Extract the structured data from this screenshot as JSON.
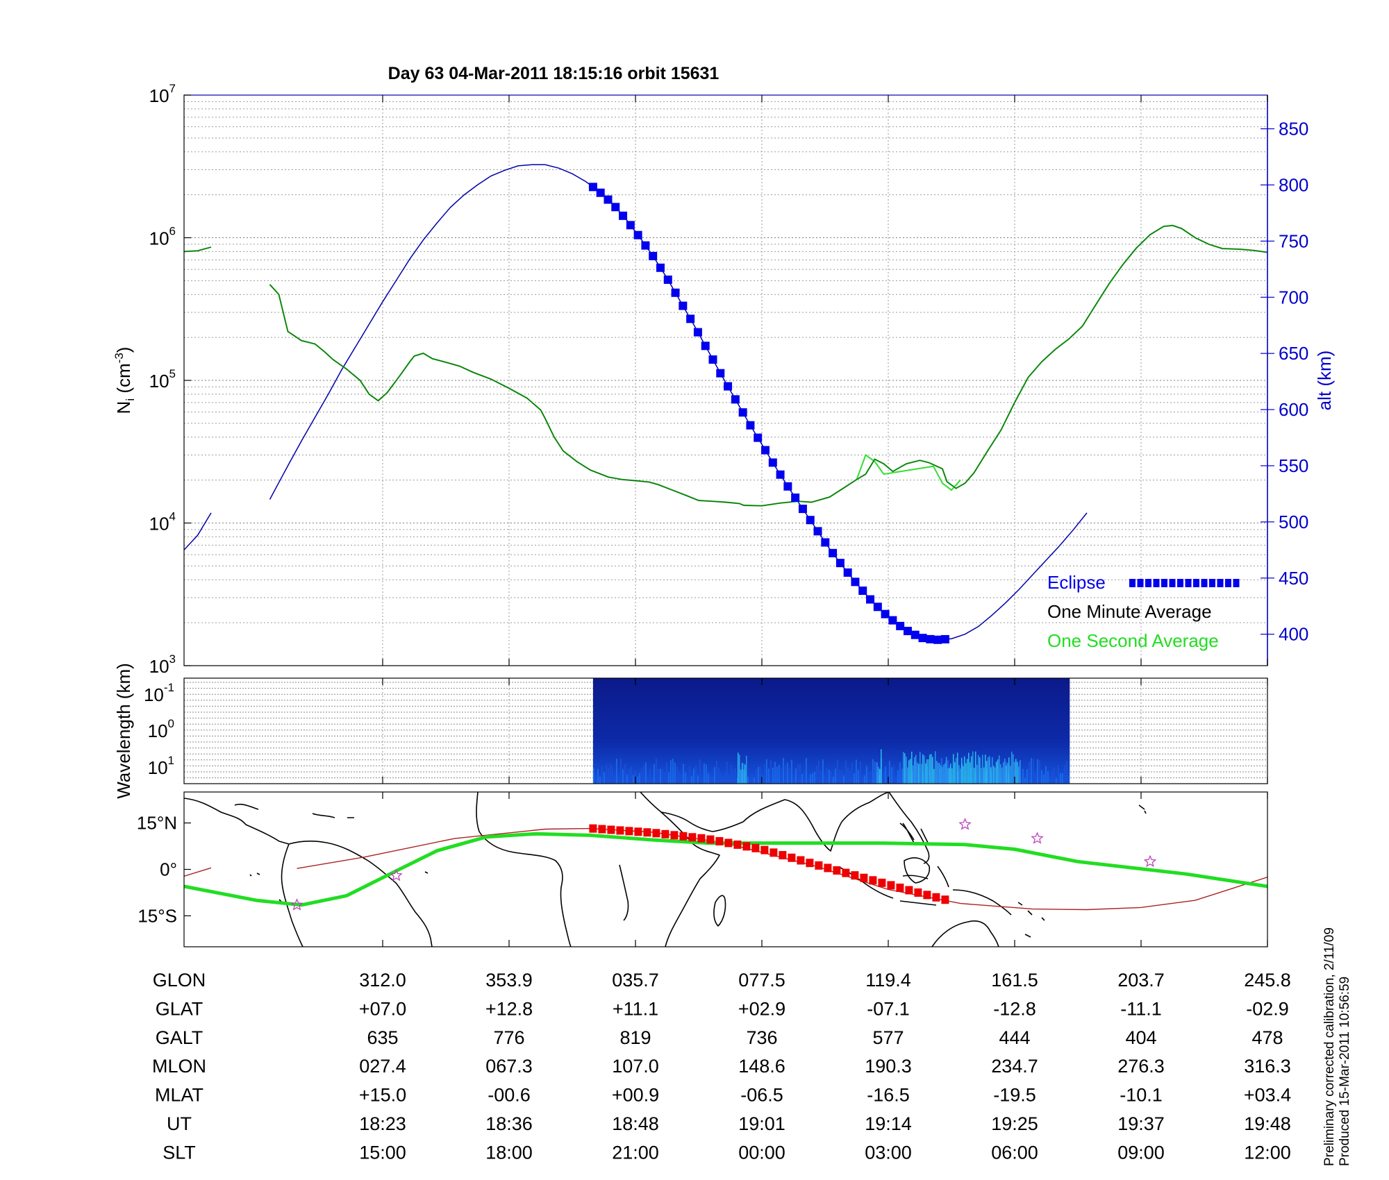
{
  "title": "Day 63  04-Mar-2011 18:15:16   orbit 15631",
  "footnote": {
    "line1": "Preliminary corrected calibration, 2/11/09",
    "line2": "Produced 15-Mar-2011 10:56:59"
  },
  "colors": {
    "density_minute": "#1a6b1a",
    "density_second": "#33dd33",
    "altitude": "#0000aa",
    "eclipse": "#0000ee",
    "map_track": "#22dd22",
    "map_orbit": "#aa2222",
    "map_eclipse": "#ee0000",
    "stars": "#bb44bb",
    "right_axis": "#0000cc",
    "legend_second": "#22dd22"
  },
  "chart_data": [
    {
      "type": "line",
      "name": "density_altitude",
      "ylabel_base": "N",
      "ylabel_sub": "i",
      "ylabel_unit": " (cm",
      "ylabel_sup": "-3",
      "ylabel_close": ")",
      "y_scale": "log",
      "ylim": [
        1000,
        10000000
      ],
      "y_ticks": [
        {
          "base": "10",
          "exp": "3"
        },
        {
          "base": "10",
          "exp": "4"
        },
        {
          "base": "10",
          "exp": "5"
        },
        {
          "base": "10",
          "exp": "6"
        },
        {
          "base": "10",
          "exp": "7"
        }
      ],
      "y2label": "alt (km)",
      "y2lim": [
        372,
        880
      ],
      "y2_ticks": [
        "400",
        "450",
        "500",
        "550",
        "600",
        "650",
        "700",
        "750",
        "800",
        "850"
      ],
      "x_unit": "minutes after 18:15:16",
      "xlim": [
        0,
        95
      ],
      "grid": true,
      "legend": {
        "placement": "bottom-right",
        "eclipse": "Eclipse",
        "minute": "One Minute Average",
        "second": "One Second Average"
      },
      "density_segments": [
        [
          [
            0,
            800000
          ],
          [
            1.5,
            810000
          ],
          [
            3,
            860000
          ]
        ],
        [
          [
            9.5,
            470000
          ],
          [
            10.5,
            400000
          ],
          [
            11.5,
            220000
          ],
          [
            13,
            190000
          ],
          [
            14.5,
            180000
          ],
          [
            15.5,
            160000
          ],
          [
            16.5,
            140000
          ],
          [
            18,
            120000
          ],
          [
            19.5,
            100000
          ],
          [
            20.5,
            80000
          ],
          [
            21.5,
            72000
          ],
          [
            22.5,
            82000
          ],
          [
            24,
            110000
          ],
          [
            25,
            135000
          ],
          [
            25.5,
            148000
          ],
          [
            26.5,
            155000
          ],
          [
            27.5,
            142000
          ],
          [
            29,
            134000
          ],
          [
            30.5,
            126000
          ],
          [
            32,
            114000
          ],
          [
            34,
            102000
          ],
          [
            36,
            88000
          ],
          [
            38,
            75000
          ],
          [
            39.5,
            62000
          ],
          [
            40,
            54000
          ],
          [
            41,
            40000
          ],
          [
            42,
            32000
          ],
          [
            43.5,
            27000
          ],
          [
            45,
            23500
          ],
          [
            47,
            21000
          ],
          [
            48.5,
            20200
          ],
          [
            50,
            19800
          ],
          [
            51.5,
            19400
          ],
          [
            52.5,
            18600
          ],
          [
            54,
            17100
          ],
          [
            55.5,
            15700
          ],
          [
            57,
            14400
          ],
          [
            58.5,
            14200
          ],
          [
            60,
            14000
          ],
          [
            61.5,
            13700
          ],
          [
            62,
            13300
          ],
          [
            64,
            13200
          ],
          [
            66,
            13800
          ],
          [
            68,
            14200
          ],
          [
            69.5,
            14000
          ],
          [
            71.5,
            15200
          ],
          [
            73,
            17500
          ],
          [
            74.5,
            20200
          ],
          [
            75.5,
            22000
          ],
          [
            76.5,
            28000
          ],
          [
            77.5,
            26000
          ],
          [
            78.5,
            23000
          ],
          [
            80,
            26000
          ],
          [
            81.5,
            27500
          ],
          [
            82.5,
            26500
          ],
          [
            84,
            24000
          ],
          [
            84.5,
            19500
          ],
          [
            85.5,
            17500
          ],
          [
            86.5,
            19000
          ],
          [
            87.5,
            22500
          ],
          [
            89,
            32000
          ],
          [
            90.5,
            45000
          ],
          [
            92,
            70000
          ],
          [
            93.5,
            105000
          ],
          [
            95,
            135000
          ],
          [
            96.5,
            165000
          ],
          [
            98,
            195000
          ],
          [
            99.5,
            240000
          ],
          [
            101,
            340000
          ],
          [
            102.5,
            480000
          ],
          [
            104,
            650000
          ],
          [
            105.5,
            850000
          ],
          [
            107,
            1050000
          ],
          [
            108.5,
            1200000
          ],
          [
            109.5,
            1220000
          ],
          [
            110.5,
            1160000
          ],
          [
            112,
            1000000
          ],
          [
            113.5,
            900000
          ],
          [
            115,
            840000
          ],
          [
            117,
            830000
          ],
          [
            118.5,
            815000
          ],
          [
            120,
            790000
          ]
        ]
      ],
      "density_second_spikes": [
        [
          74.5,
          20200
        ],
        [
          75.5,
          30000
        ],
        [
          76.5,
          27000
        ],
        [
          77.5,
          22000
        ],
        [
          83,
          25000
        ],
        [
          84,
          19000
        ],
        [
          85,
          17000
        ],
        [
          86,
          20000
        ]
      ],
      "altitude_km_segments": [
        [
          [
            0,
            475
          ],
          [
            1.5,
            488
          ],
          [
            3,
            508
          ]
        ],
        [
          [
            9.5,
            520
          ],
          [
            10.5,
            535
          ],
          [
            11.5,
            550
          ],
          [
            13,
            572
          ],
          [
            14.5,
            593
          ],
          [
            16,
            614
          ],
          [
            17.5,
            636
          ],
          [
            19,
            656
          ],
          [
            20.5,
            676
          ],
          [
            22,
            696
          ],
          [
            23.5,
            715
          ],
          [
            25,
            734
          ],
          [
            26.5,
            751
          ],
          [
            28,
            766
          ],
          [
            29.5,
            780
          ],
          [
            31,
            791
          ],
          [
            32.5,
            800
          ],
          [
            34,
            808
          ],
          [
            35.5,
            813
          ],
          [
            37,
            817
          ],
          [
            38.5,
            818
          ],
          [
            40,
            818
          ],
          [
            41.5,
            815
          ],
          [
            43,
            810
          ],
          [
            44.5,
            803
          ],
          [
            46,
            794
          ],
          [
            47.5,
            783
          ],
          [
            49,
            769
          ],
          [
            50.5,
            753
          ],
          [
            52,
            736
          ],
          [
            53.5,
            717
          ],
          [
            55,
            696
          ],
          [
            56.5,
            675
          ],
          [
            58,
            653
          ],
          [
            59.5,
            631
          ],
          [
            61,
            610
          ],
          [
            62.5,
            589
          ],
          [
            64,
            569
          ],
          [
            65.5,
            549
          ],
          [
            67,
            530
          ],
          [
            68.5,
            512
          ],
          [
            70,
            494
          ],
          [
            71.5,
            476
          ],
          [
            73,
            460
          ],
          [
            74.5,
            445
          ],
          [
            76,
            431
          ],
          [
            77.5,
            419
          ],
          [
            79,
            409
          ],
          [
            80.5,
            401
          ],
          [
            82,
            396
          ],
          [
            83.5,
            395
          ],
          [
            85,
            396
          ],
          [
            86.5,
            400
          ],
          [
            88,
            407
          ],
          [
            89.5,
            417
          ],
          [
            91,
            428
          ],
          [
            92.5,
            440
          ],
          [
            94,
            453
          ],
          [
            95.5,
            466
          ],
          [
            97,
            479
          ],
          [
            98.5,
            493
          ],
          [
            100,
            508
          ]
        ]
      ],
      "eclipse_x": [
        45.3,
        84.3
      ],
      "eclipse_symbol_count": 48
    },
    {
      "type": "heatmap",
      "name": "wavelength_spectrogram",
      "ylabel": "Wavelength (km)",
      "y_ticks": [
        {
          "base": "10",
          "exp": "-1"
        },
        {
          "base": "10",
          "exp": "0"
        },
        {
          "base": "10",
          "exp": "1"
        }
      ],
      "data_x": [
        45.3,
        98.1
      ]
    },
    {
      "type": "line",
      "name": "ground_track_map",
      "y_ticks": [
        "15°N",
        "0°",
        "15°S"
      ],
      "ylim": [
        -25,
        25
      ],
      "x_unit": "minutes after 18:15:16",
      "track_points": [
        [
          0,
          -5.5
        ],
        [
          8,
          -10.0
        ],
        [
          13,
          -11.5
        ],
        [
          18,
          -8.5
        ],
        [
          23.5,
          -0.5
        ],
        [
          28,
          6.0
        ],
        [
          33.5,
          10.5
        ],
        [
          39,
          11.5
        ],
        [
          45,
          11.0
        ],
        [
          52,
          9.5
        ],
        [
          58,
          8.5
        ],
        [
          62,
          8.5
        ],
        [
          69,
          8.5
        ],
        [
          77,
          8.5
        ],
        [
          86.5,
          8.0
        ],
        [
          92,
          6.5
        ],
        [
          99,
          2.5
        ],
        [
          111,
          -1.5
        ],
        [
          120,
          -5.5
        ]
      ],
      "orbit_track_segments": [
        [
          [
            0,
            -2.2
          ],
          [
            3,
            0.5
          ]
        ],
        [
          [
            12.5,
            0.3
          ],
          [
            20,
            4.0
          ],
          [
            30,
            10.0
          ],
          [
            40,
            13.0
          ],
          [
            45,
            13.2
          ],
          [
            52,
            12.0
          ],
          [
            60,
            8.5
          ],
          [
            70,
            1.0
          ],
          [
            78,
            -6.5
          ],
          [
            86,
            -11.0
          ],
          [
            94,
            -12.8
          ],
          [
            100,
            -13.0
          ],
          [
            106,
            -12.3
          ],
          [
            112,
            -10.0
          ],
          [
            120,
            -2.5
          ]
        ]
      ],
      "eclipse_track": [
        [
          45.3,
          13.2
        ],
        [
          52,
          11.8
        ],
        [
          58,
          9.8
        ],
        [
          64,
          6.5
        ],
        [
          70,
          1.5
        ],
        [
          75,
          -2.5
        ],
        [
          80,
          -6.5
        ],
        [
          84.3,
          -9.8
        ]
      ],
      "stars": [
        [
          12.5,
          -11.5
        ],
        [
          23.5,
          -2.0
        ],
        [
          86.5,
          14.5
        ],
        [
          94.5,
          10.0
        ],
        [
          107,
          2.5
        ]
      ]
    }
  ],
  "x_ticks_min": [
    22,
    36,
    50,
    64,
    78,
    92,
    106,
    120
  ],
  "table": {
    "rows": [
      {
        "label": "GLON",
        "values": [
          "312.0",
          "353.9",
          "035.7",
          "077.5",
          "119.4",
          "161.5",
          "203.7",
          "245.8"
        ]
      },
      {
        "label": "GLAT",
        "values": [
          "+07.0",
          "+12.8",
          "+11.1",
          "+02.9",
          "-07.1",
          "-12.8",
          "-11.1",
          "-02.9"
        ]
      },
      {
        "label": "GALT",
        "values": [
          "635",
          "776",
          "819",
          "736",
          "577",
          "444",
          "404",
          "478"
        ]
      },
      {
        "label": "MLON",
        "values": [
          "027.4",
          "067.3",
          "107.0",
          "148.6",
          "190.3",
          "234.7",
          "276.3",
          "316.3"
        ]
      },
      {
        "label": "MLAT",
        "values": [
          "+15.0",
          "-00.6",
          "+00.9",
          "-06.5",
          "-16.5",
          "-19.5",
          "-10.1",
          "+03.4"
        ]
      },
      {
        "label": "UT",
        "values": [
          "18:23",
          "18:36",
          "18:48",
          "19:01",
          "19:14",
          "19:25",
          "19:37",
          "19:48"
        ]
      },
      {
        "label": "SLT",
        "values": [
          "15:00",
          "18:00",
          "21:00",
          "00:00",
          "03:00",
          "06:00",
          "09:00",
          "12:00"
        ]
      }
    ]
  }
}
